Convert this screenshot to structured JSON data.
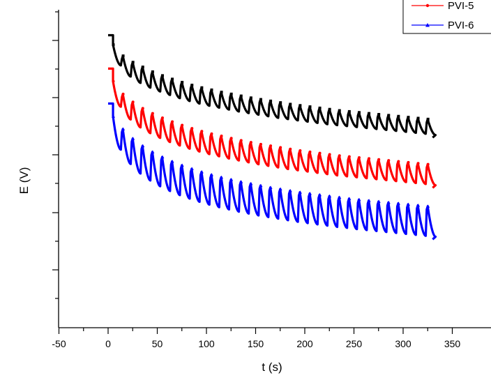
{
  "chart_data": {
    "type": "line",
    "title": "",
    "xlabel": "t (s)",
    "ylabel": "E (V)",
    "xlim": [
      -50,
      370
    ],
    "ylim": [
      0,
      100
    ],
    "x_ticks": [
      -50,
      0,
      50,
      100,
      150,
      200,
      250,
      300,
      350
    ],
    "x_tick_labels": [
      "-50",
      "0",
      "50",
      "100",
      "150",
      "200",
      "250",
      "300",
      "350"
    ],
    "y_tick_labels_shown": false,
    "legend_position": "top-right",
    "series": [
      {
        "name": "",
        "color": "#000000",
        "marker": "square",
        "t_start": 0,
        "t_end": 330,
        "cycle_period_s": 10,
        "initial_plateau": [
          [
            0,
            92.0
          ],
          [
            5,
            92.0
          ]
        ],
        "cycles": [
          {
            "t": 5,
            "top": 89.0,
            "bottom": 82.5
          },
          {
            "t": 15,
            "top": 85.5,
            "bottom": 79.0
          },
          {
            "t": 25,
            "top": 83.5,
            "bottom": 77.0
          },
          {
            "t": 35,
            "top": 82.0,
            "bottom": 75.5
          },
          {
            "t": 45,
            "top": 80.5,
            "bottom": 74.3
          },
          {
            "t": 55,
            "top": 79.3,
            "bottom": 73.2
          },
          {
            "t": 65,
            "top": 78.2,
            "bottom": 72.2
          },
          {
            "t": 75,
            "top": 77.2,
            "bottom": 71.3
          },
          {
            "t": 85,
            "top": 76.3,
            "bottom": 70.5
          },
          {
            "t": 95,
            "top": 75.5,
            "bottom": 69.8
          },
          {
            "t": 105,
            "top": 74.8,
            "bottom": 69.2
          },
          {
            "t": 115,
            "top": 74.1,
            "bottom": 68.6
          },
          {
            "t": 125,
            "top": 73.5,
            "bottom": 68.0
          },
          {
            "t": 135,
            "top": 72.9,
            "bottom": 67.5
          },
          {
            "t": 145,
            "top": 72.3,
            "bottom": 67.0
          },
          {
            "t": 155,
            "top": 71.8,
            "bottom": 66.5
          },
          {
            "t": 165,
            "top": 71.3,
            "bottom": 66.0
          },
          {
            "t": 175,
            "top": 70.8,
            "bottom": 65.6
          },
          {
            "t": 185,
            "top": 70.3,
            "bottom": 65.2
          },
          {
            "t": 195,
            "top": 69.9,
            "bottom": 64.8
          },
          {
            "t": 205,
            "top": 69.5,
            "bottom": 64.4
          },
          {
            "t": 215,
            "top": 69.1,
            "bottom": 64.0
          },
          {
            "t": 225,
            "top": 68.7,
            "bottom": 63.7
          },
          {
            "t": 235,
            "top": 68.3,
            "bottom": 63.4
          },
          {
            "t": 245,
            "top": 68.0,
            "bottom": 63.1
          },
          {
            "t": 255,
            "top": 67.7,
            "bottom": 62.8
          },
          {
            "t": 265,
            "top": 67.4,
            "bottom": 62.5
          },
          {
            "t": 275,
            "top": 67.1,
            "bottom": 62.2
          },
          {
            "t": 285,
            "top": 66.8,
            "bottom": 61.9
          },
          {
            "t": 295,
            "top": 66.5,
            "bottom": 61.6
          },
          {
            "t": 305,
            "top": 66.2,
            "bottom": 61.3
          },
          {
            "t": 315,
            "top": 65.9,
            "bottom": 61.0
          },
          {
            "t": 325,
            "top": 65.6,
            "bottom": 60.6
          }
        ]
      },
      {
        "name": "PVI-5",
        "color": "#ff0000",
        "marker": "circle",
        "t_start": 0,
        "t_end": 330,
        "cycle_period_s": 10,
        "initial_plateau": [
          [
            0,
            81.5
          ],
          [
            5,
            81.5
          ]
        ],
        "cycles": [
          {
            "t": 5,
            "top": 77.5,
            "bottom": 69.5
          },
          {
            "t": 15,
            "top": 73.5,
            "bottom": 65.5
          },
          {
            "t": 25,
            "top": 71.0,
            "bottom": 63.0
          },
          {
            "t": 35,
            "top": 69.0,
            "bottom": 61.2
          },
          {
            "t": 45,
            "top": 67.4,
            "bottom": 59.7
          },
          {
            "t": 55,
            "top": 66.0,
            "bottom": 58.4
          },
          {
            "t": 65,
            "top": 64.8,
            "bottom": 57.3
          },
          {
            "t": 75,
            "top": 63.7,
            "bottom": 56.3
          },
          {
            "t": 85,
            "top": 62.7,
            "bottom": 55.4
          },
          {
            "t": 95,
            "top": 61.8,
            "bottom": 54.6
          },
          {
            "t": 105,
            "top": 61.0,
            "bottom": 53.9
          },
          {
            "t": 115,
            "top": 60.3,
            "bottom": 53.2
          },
          {
            "t": 125,
            "top": 59.6,
            "bottom": 52.6
          },
          {
            "t": 135,
            "top": 58.9,
            "bottom": 52.0
          },
          {
            "t": 145,
            "top": 58.3,
            "bottom": 51.4
          },
          {
            "t": 155,
            "top": 57.7,
            "bottom": 50.9
          },
          {
            "t": 165,
            "top": 57.2,
            "bottom": 50.4
          },
          {
            "t": 175,
            "top": 56.7,
            "bottom": 49.9
          },
          {
            "t": 185,
            "top": 56.2,
            "bottom": 49.5
          },
          {
            "t": 195,
            "top": 55.7,
            "bottom": 49.1
          },
          {
            "t": 205,
            "top": 55.3,
            "bottom": 48.7
          },
          {
            "t": 215,
            "top": 54.9,
            "bottom": 48.3
          },
          {
            "t": 225,
            "top": 54.5,
            "bottom": 47.9
          },
          {
            "t": 235,
            "top": 54.1,
            "bottom": 47.6
          },
          {
            "t": 245,
            "top": 53.8,
            "bottom": 47.3
          },
          {
            "t": 255,
            "top": 53.5,
            "bottom": 47.0
          },
          {
            "t": 265,
            "top": 53.2,
            "bottom": 46.7
          },
          {
            "t": 275,
            "top": 52.9,
            "bottom": 46.4
          },
          {
            "t": 285,
            "top": 52.6,
            "bottom": 46.1
          },
          {
            "t": 295,
            "top": 52.3,
            "bottom": 45.8
          },
          {
            "t": 305,
            "top": 52.0,
            "bottom": 45.5
          },
          {
            "t": 315,
            "top": 51.7,
            "bottom": 45.2
          },
          {
            "t": 325,
            "top": 51.4,
            "bottom": 44.8
          }
        ]
      },
      {
        "name": "PVI-6",
        "color": "#0000ff",
        "marker": "triangle",
        "t_start": 0,
        "t_end": 330,
        "cycle_period_s": 10,
        "initial_plateau": [
          [
            0,
            70.5
          ],
          [
            5,
            70.5
          ]
        ],
        "cycles": [
          {
            "t": 5,
            "top": 66.5,
            "bottom": 56.0
          },
          {
            "t": 15,
            "top": 62.5,
            "bottom": 51.5
          },
          {
            "t": 25,
            "top": 59.5,
            "bottom": 48.5
          },
          {
            "t": 35,
            "top": 57.2,
            "bottom": 46.3
          },
          {
            "t": 45,
            "top": 55.3,
            "bottom": 44.5
          },
          {
            "t": 55,
            "top": 53.7,
            "bottom": 43.0
          },
          {
            "t": 65,
            "top": 52.3,
            "bottom": 41.7
          },
          {
            "t": 75,
            "top": 51.1,
            "bottom": 40.6
          },
          {
            "t": 85,
            "top": 50.0,
            "bottom": 39.6
          },
          {
            "t": 95,
            "top": 49.0,
            "bottom": 38.7
          },
          {
            "t": 105,
            "top": 48.1,
            "bottom": 37.9
          },
          {
            "t": 115,
            "top": 47.3,
            "bottom": 37.2
          },
          {
            "t": 125,
            "top": 46.6,
            "bottom": 36.5
          },
          {
            "t": 135,
            "top": 45.9,
            "bottom": 35.9
          },
          {
            "t": 145,
            "top": 45.3,
            "bottom": 35.3
          },
          {
            "t": 155,
            "top": 44.7,
            "bottom": 34.8
          },
          {
            "t": 165,
            "top": 44.1,
            "bottom": 34.3
          },
          {
            "t": 175,
            "top": 43.6,
            "bottom": 33.8
          },
          {
            "t": 185,
            "top": 43.1,
            "bottom": 33.3
          },
          {
            "t": 195,
            "top": 42.6,
            "bottom": 32.9
          },
          {
            "t": 205,
            "top": 42.2,
            "bottom": 32.5
          },
          {
            "t": 215,
            "top": 41.8,
            "bottom": 32.1
          },
          {
            "t": 225,
            "top": 41.4,
            "bottom": 31.7
          },
          {
            "t": 235,
            "top": 41.0,
            "bottom": 31.4
          },
          {
            "t": 245,
            "top": 40.6,
            "bottom": 31.0
          },
          {
            "t": 255,
            "top": 40.3,
            "bottom": 30.7
          },
          {
            "t": 265,
            "top": 40.0,
            "bottom": 30.4
          },
          {
            "t": 275,
            "top": 39.7,
            "bottom": 30.1
          },
          {
            "t": 285,
            "top": 39.4,
            "bottom": 29.8
          },
          {
            "t": 295,
            "top": 39.1,
            "bottom": 29.5
          },
          {
            "t": 305,
            "top": 38.8,
            "bottom": 29.2
          },
          {
            "t": 315,
            "top": 38.5,
            "bottom": 28.9
          },
          {
            "t": 325,
            "top": 38.2,
            "bottom": 28.6
          }
        ]
      }
    ]
  }
}
